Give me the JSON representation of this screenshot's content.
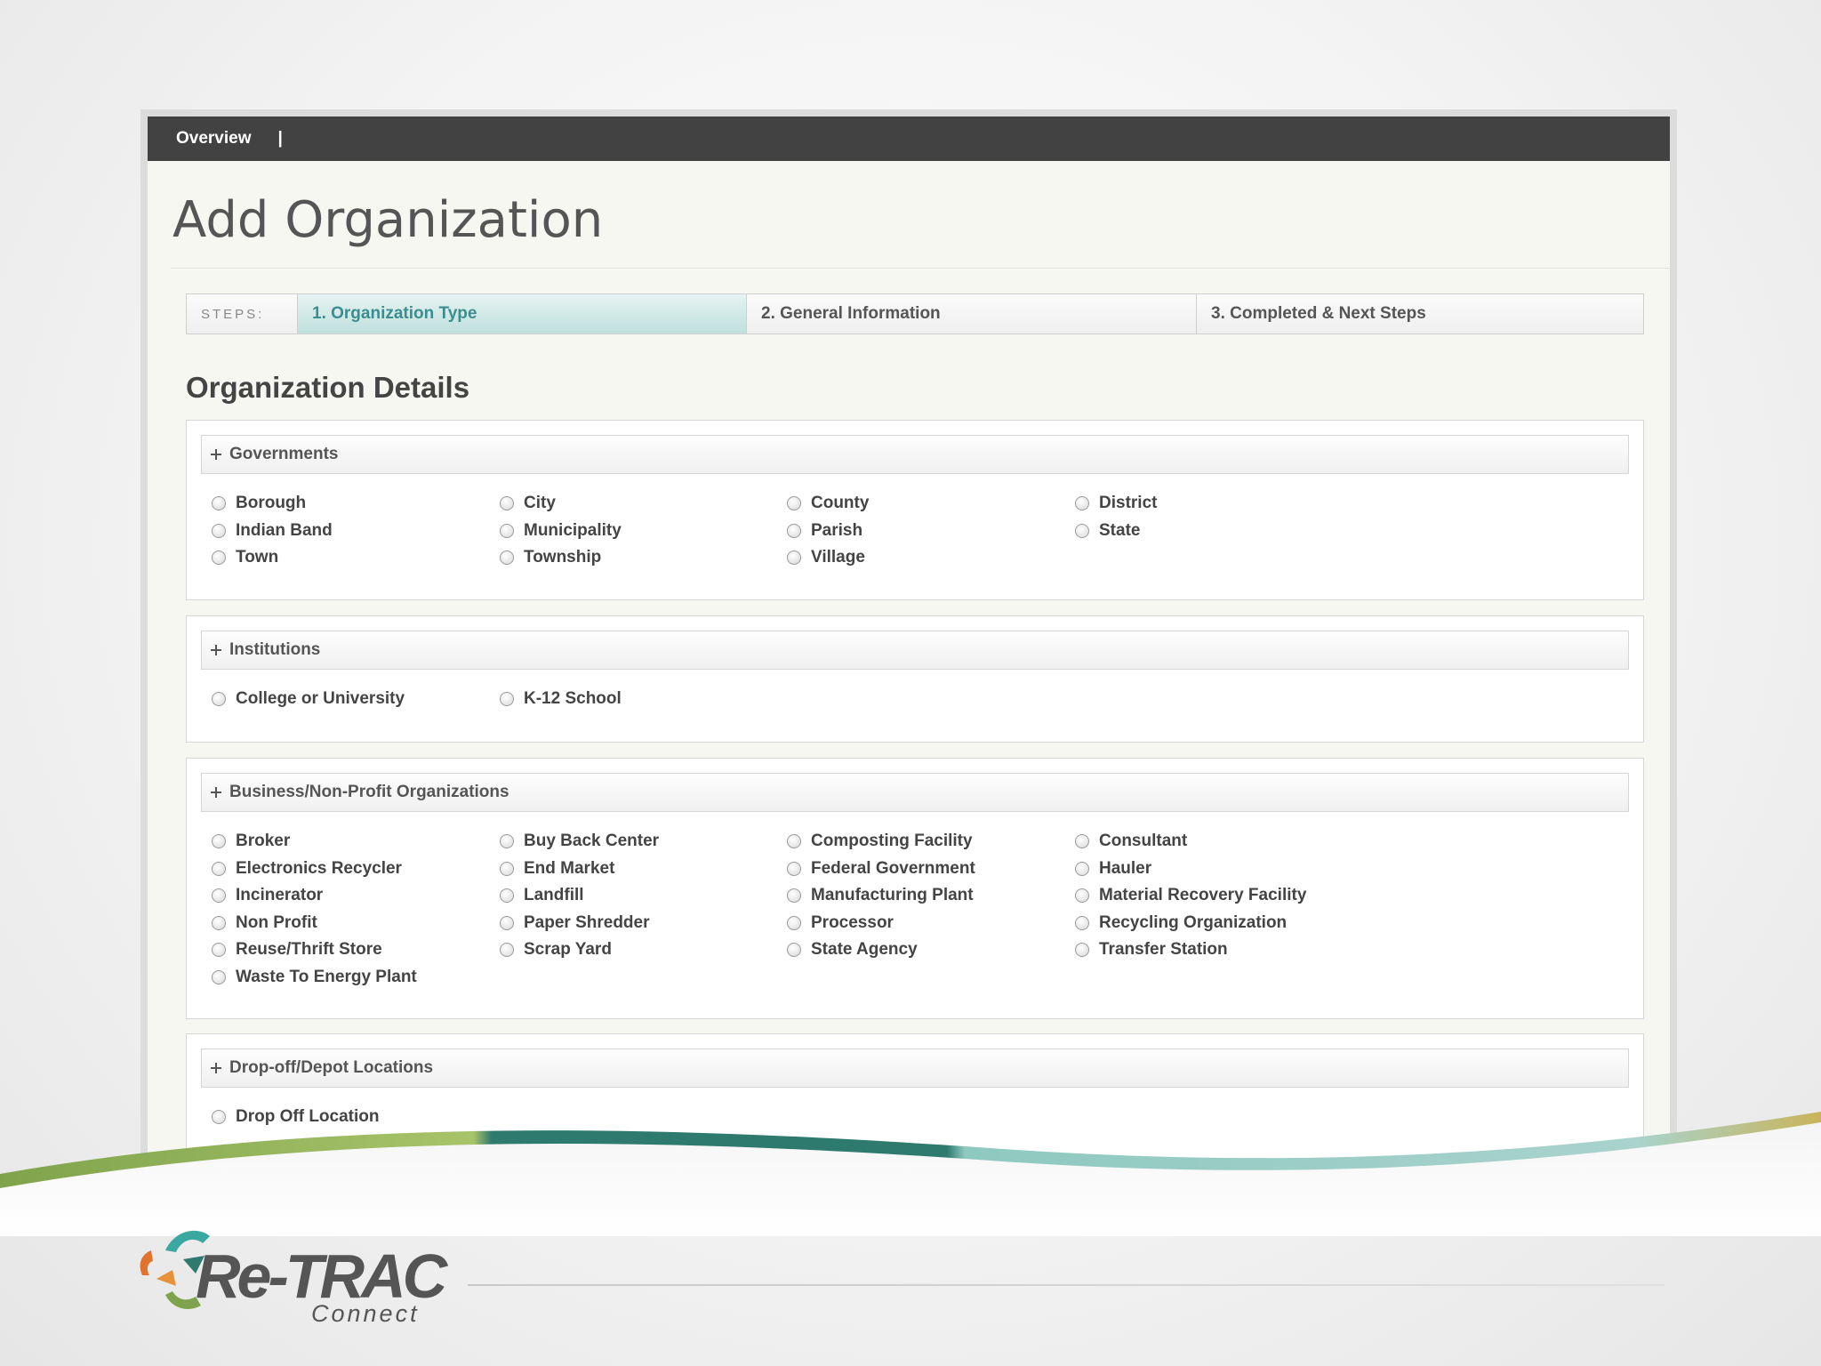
{
  "nav": {
    "overview": "Overview",
    "separator": "|"
  },
  "page_title": "Add Organization",
  "steps": {
    "label": "STEPS:",
    "items": [
      "1. Organization Type",
      "2. General Information",
      "3. Completed & Next Steps"
    ],
    "active_index": 0
  },
  "section_title": "Organization Details",
  "groups": [
    {
      "title": "Governments",
      "columns": [
        [
          "Borough",
          "Indian Band",
          "Town"
        ],
        [
          "City",
          "Municipality",
          "Township"
        ],
        [
          "County",
          "Parish",
          "Village"
        ],
        [
          "District",
          "State"
        ]
      ]
    },
    {
      "title": "Institutions",
      "columns": [
        [
          "College or University"
        ],
        [
          "K-12 School"
        ]
      ]
    },
    {
      "title": "Business/Non-Profit Organizations",
      "columns": [
        [
          "Broker",
          "Electronics Recycler",
          "Incinerator",
          "Non Profit",
          "Reuse/Thrift Store",
          "Waste To Energy Plant"
        ],
        [
          "Buy Back Center",
          "End Market",
          "Landfill",
          "Paper Shredder",
          "Scrap Yard"
        ],
        [
          "Composting Facility",
          "Federal Government",
          "Manufacturing Plant",
          "Processor",
          "State Agency"
        ],
        [
          "Consultant",
          "Hauler",
          "Material Recovery Facility",
          "Recycling Organization",
          "Transfer Station"
        ]
      ]
    },
    {
      "title": "Drop-off/Depot Locations",
      "columns": [
        [
          "Drop Off Location"
        ]
      ]
    }
  ],
  "logo": {
    "word": "Re-TRAC",
    "sub": "Connect"
  },
  "colors": {
    "accent": "#3b8d8f",
    "topbar": "#424242",
    "swoosh_green": "#8fb05a",
    "swoosh_teal": "#2f7a6e"
  }
}
